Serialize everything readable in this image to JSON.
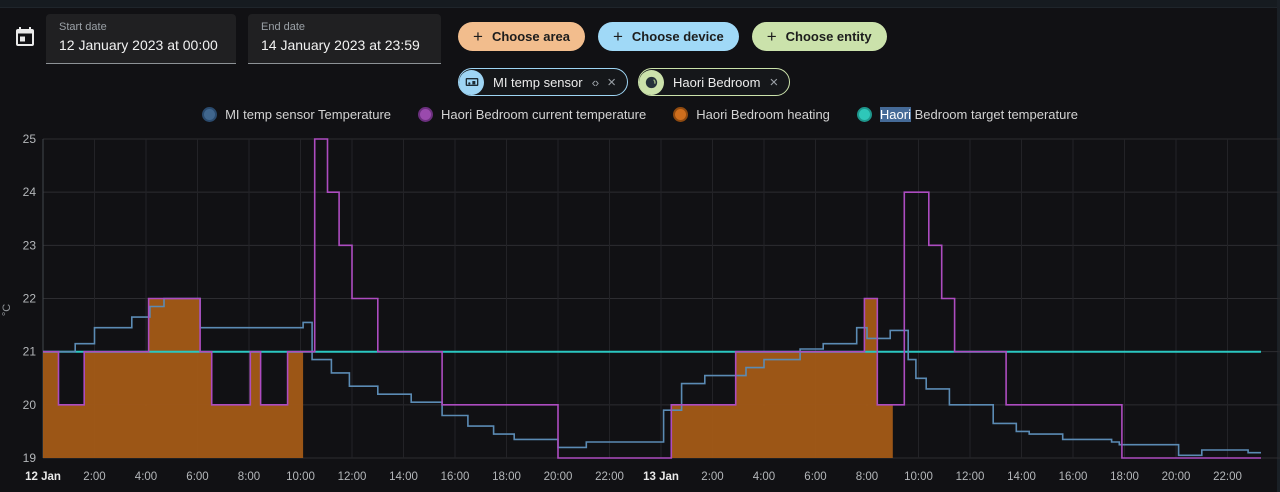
{
  "header": {
    "start_date": {
      "label": "Start date",
      "value": "12 January 2023 at 00:00"
    },
    "end_date": {
      "label": "End date",
      "value": "14 January 2023 at 23:59"
    },
    "buttons": [
      {
        "label": "Choose area",
        "bg": "#f2bd8d"
      },
      {
        "label": "Choose device",
        "bg": "#a0d9f7"
      },
      {
        "label": "Choose entity",
        "bg": "#cbe2ab"
      }
    ],
    "chips": [
      {
        "label": "MI temp sensor",
        "accent": "#9ed5f4",
        "avatar_icon": "devices-icon",
        "has_expand": true
      },
      {
        "label": "Haori Bedroom",
        "accent": "#cbe2ab",
        "avatar_icon": "area-icon",
        "has_expand": false
      }
    ]
  },
  "icons": {
    "plus": "+",
    "close": "×",
    "code_brackets": "‹›"
  },
  "legend": {
    "items": [
      {
        "label": "MI temp sensor Temperature",
        "color": "#40668d",
        "ring": "#2a4a6d"
      },
      {
        "label": "Haori Bedroom current temperature",
        "color": "#9a4aad",
        "ring": "#6b2f7e"
      },
      {
        "label": "Haori Bedroom heating",
        "color": "#cf6e1d",
        "ring": "#8f4a10"
      },
      {
        "label": "Haori Bedroom target temperature",
        "color": "#2ec7b9",
        "ring": "#1e968c",
        "selected_word": "Haori",
        "selection_color": "#456a97"
      }
    ]
  },
  "chart_data": {
    "type": "line",
    "title": "",
    "xlabel": "",
    "ylabel": "°C",
    "ylim": [
      19,
      25
    ],
    "y_ticks": [
      19,
      20,
      21,
      22,
      23,
      24,
      25
    ],
    "x_range_hours": [
      0,
      48
    ],
    "x_origin": "12 Jan 2023 00:00",
    "x_data_end_hours": 47.3,
    "grid": true,
    "legend_position": "top",
    "grid_color": "#2d2d31",
    "vgrid_color": "#232327",
    "axis_color": "#41464c",
    "tick_color": "#b4b7ba",
    "tick_bold_color": "#e9e9e9",
    "x_ticks": [
      {
        "t": 0,
        "label": "12 Jan",
        "bold": true
      },
      {
        "t": 2,
        "label": "2:00",
        "bold": false
      },
      {
        "t": 4,
        "label": "4:00",
        "bold": false
      },
      {
        "t": 6,
        "label": "6:00",
        "bold": false
      },
      {
        "t": 8,
        "label": "8:00",
        "bold": false
      },
      {
        "t": 10,
        "label": "10:00",
        "bold": false
      },
      {
        "t": 12,
        "label": "12:00",
        "bold": false
      },
      {
        "t": 14,
        "label": "14:00",
        "bold": false
      },
      {
        "t": 16,
        "label": "16:00",
        "bold": false
      },
      {
        "t": 18,
        "label": "18:00",
        "bold": false
      },
      {
        "t": 20,
        "label": "20:00",
        "bold": false
      },
      {
        "t": 22,
        "label": "22:00",
        "bold": false
      },
      {
        "t": 24,
        "label": "13 Jan",
        "bold": true
      },
      {
        "t": 26,
        "label": "2:00",
        "bold": false
      },
      {
        "t": 28,
        "label": "4:00",
        "bold": false
      },
      {
        "t": 30,
        "label": "6:00",
        "bold": false
      },
      {
        "t": 32,
        "label": "8:00",
        "bold": false
      },
      {
        "t": 34,
        "label": "10:00",
        "bold": false
      },
      {
        "t": 36,
        "label": "12:00",
        "bold": false
      },
      {
        "t": 38,
        "label": "14:00",
        "bold": false
      },
      {
        "t": 40,
        "label": "16:00",
        "bold": false
      },
      {
        "t": 42,
        "label": "18:00",
        "bold": false
      },
      {
        "t": 44,
        "label": "20:00",
        "bold": false
      },
      {
        "t": 46,
        "label": "22:00",
        "bold": false
      }
    ],
    "series": [
      {
        "name": "MI temp sensor Temperature",
        "type": "step-line",
        "color": "#5b8bb4",
        "unit": "°C",
        "points": [
          [
            0,
            21.0
          ],
          [
            1.25,
            21.15
          ],
          [
            2.0,
            21.45
          ],
          [
            3.45,
            21.65
          ],
          [
            4.15,
            21.85
          ],
          [
            4.7,
            22.0
          ],
          [
            6.1,
            21.45
          ],
          [
            10.1,
            21.55
          ],
          [
            10.45,
            20.85
          ],
          [
            11.2,
            20.6
          ],
          [
            11.9,
            20.35
          ],
          [
            13.0,
            20.2
          ],
          [
            14.3,
            20.05
          ],
          [
            15.5,
            19.8
          ],
          [
            16.5,
            19.6
          ],
          [
            17.5,
            19.45
          ],
          [
            18.3,
            19.35
          ],
          [
            20.0,
            19.2
          ],
          [
            21.1,
            19.3
          ],
          [
            24.1,
            19.9
          ],
          [
            24.8,
            20.4
          ],
          [
            25.7,
            20.55
          ],
          [
            27.3,
            20.7
          ],
          [
            28.0,
            20.85
          ],
          [
            29.4,
            21.05
          ],
          [
            30.3,
            21.15
          ],
          [
            31.6,
            21.45
          ],
          [
            32.0,
            21.25
          ],
          [
            32.9,
            21.4
          ],
          [
            33.6,
            20.85
          ],
          [
            33.9,
            20.5
          ],
          [
            34.3,
            20.3
          ],
          [
            35.2,
            20.0
          ],
          [
            36.9,
            19.65
          ],
          [
            37.8,
            19.5
          ],
          [
            38.3,
            19.45
          ],
          [
            39.6,
            19.35
          ],
          [
            41.5,
            19.3
          ],
          [
            41.8,
            19.25
          ],
          [
            44.1,
            19.05
          ],
          [
            45.0,
            19.15
          ],
          [
            46.8,
            19.1
          ],
          [
            47.3,
            19.1
          ]
        ]
      },
      {
        "name": "Haori Bedroom current temperature",
        "type": "step-line",
        "color": "#ad4cc0",
        "unit": "°C",
        "points": [
          [
            0,
            21
          ],
          [
            0.6,
            20
          ],
          [
            1.6,
            21
          ],
          [
            4.1,
            22
          ],
          [
            6.1,
            21
          ],
          [
            6.55,
            20
          ],
          [
            8.05,
            21
          ],
          [
            8.45,
            20
          ],
          [
            9.5,
            21
          ],
          [
            10.55,
            25
          ],
          [
            11.05,
            24
          ],
          [
            11.5,
            23
          ],
          [
            12.0,
            22
          ],
          [
            13.0,
            21
          ],
          [
            15.5,
            20
          ],
          [
            20.0,
            19
          ],
          [
            24.4,
            20
          ],
          [
            26.9,
            21
          ],
          [
            31.9,
            22
          ],
          [
            32.4,
            20
          ],
          [
            33.45,
            24
          ],
          [
            34.4,
            23
          ],
          [
            34.9,
            22
          ],
          [
            35.4,
            21
          ],
          [
            37.4,
            20
          ],
          [
            41.9,
            19
          ],
          [
            47.3,
            19
          ]
        ]
      },
      {
        "name": "Haori Bedroom heating",
        "type": "step-area",
        "color": "#a25917",
        "fill_to": 19,
        "follows_series": "Haori Bedroom current temperature",
        "on_intervals_hours": [
          [
            0,
            10.1
          ],
          [
            24.4,
            33.0
          ]
        ]
      },
      {
        "name": "Haori Bedroom target temperature",
        "type": "line",
        "color": "#2bc7c1",
        "unit": "°C",
        "points": [
          [
            0,
            21
          ],
          [
            47.3,
            21
          ]
        ]
      }
    ]
  }
}
